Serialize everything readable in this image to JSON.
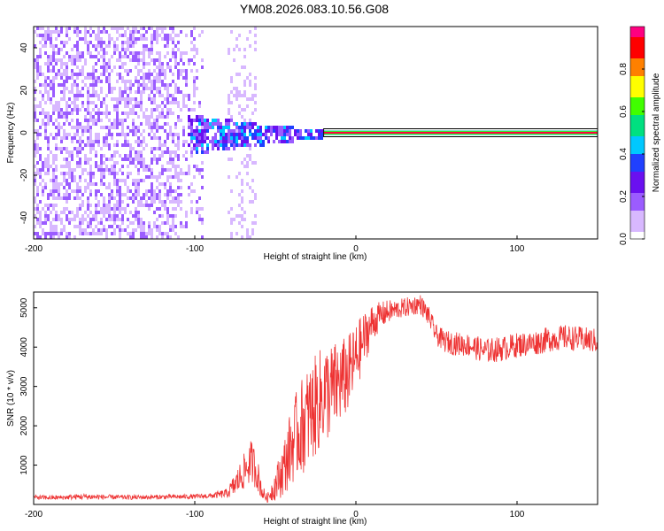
{
  "title": "YM08.2026.083.10.56.G08",
  "chart_data": [
    {
      "type": "heatmap",
      "title": "",
      "xlabel": "Height of straight line (km)",
      "ylabel": "Frequency (Hz)",
      "xlim": [
        -200,
        150
      ],
      "ylim": [
        -50,
        50
      ],
      "x_ticks": [
        -200,
        -100,
        0,
        100
      ],
      "y_ticks": [
        -40,
        -20,
        0,
        20,
        40
      ],
      "colorbar": {
        "label": "Normalized spectral amplitude",
        "range": [
          0,
          1
        ],
        "ticks": [
          0.0,
          0.2,
          0.4,
          0.6,
          0.8
        ],
        "colormap": [
          "#ffffff",
          "#d8b8ff",
          "#9b5cff",
          "#6a10f0",
          "#2040ff",
          "#00c8ff",
          "#00e080",
          "#40ff00",
          "#ffff00",
          "#ff8000",
          "#ff0000",
          "#ff0080"
        ]
      },
      "regions": [
        {
          "name": "noise",
          "x": [
            -200,
            -95
          ],
          "freq": [
            -50,
            50
          ],
          "amplitude": 0.12
        },
        {
          "name": "noise-band",
          "x": [
            -80,
            -62
          ],
          "freq": [
            -50,
            50
          ],
          "amplitude": 0.07
        },
        {
          "name": "onset",
          "x": [
            -105,
            -20
          ],
          "freq": [
            -8,
            8
          ],
          "amplitude": 0.35
        },
        {
          "name": "carrier",
          "x": [
            -20,
            150
          ],
          "freq": [
            0,
            0
          ],
          "amplitude": 0.95
        }
      ]
    },
    {
      "type": "line",
      "title": "",
      "xlabel": "Height of straight line (km)",
      "ylabel": "SNR (10 * v/v)",
      "xlim": [
        -200,
        150
      ],
      "ylim": [
        0,
        5400
      ],
      "x_ticks": [
        -200,
        -100,
        0,
        100
      ],
      "y_ticks": [
        1000,
        2000,
        3000,
        4000,
        5000
      ],
      "color": "#ee3333",
      "series": [
        {
          "x": [
            -200,
            -190,
            -180,
            -170,
            -160,
            -150,
            -140,
            -130,
            -120,
            -110,
            -100,
            -90,
            -80,
            -75,
            -70,
            -65,
            -62,
            -58,
            -55,
            -50,
            -45,
            -40,
            -35,
            -30,
            -25,
            -20,
            -15,
            -10,
            -5,
            0,
            5,
            10,
            15,
            20,
            25,
            30,
            35,
            40,
            45,
            50,
            55,
            60,
            70,
            80,
            90,
            100,
            110,
            120,
            130,
            140,
            150
          ],
          "values": [
            180,
            170,
            180,
            200,
            190,
            185,
            180,
            185,
            190,
            195,
            200,
            220,
            280,
            500,
            800,
            1100,
            900,
            300,
            150,
            500,
            900,
            1500,
            1900,
            2200,
            2500,
            2800,
            2900,
            3100,
            3300,
            3700,
            4200,
            4600,
            4800,
            4900,
            4950,
            5000,
            5050,
            5100,
            4800,
            4300,
            4150,
            4100,
            4050,
            3900,
            3950,
            4050,
            4100,
            4200,
            4250,
            4200,
            4150
          ],
          "spread": [
            60,
            60,
            60,
            80,
            70,
            60,
            60,
            60,
            60,
            60,
            60,
            70,
            120,
            300,
            450,
            550,
            500,
            200,
            100,
            400,
            700,
            1000,
            1200,
            1300,
            1300,
            1300,
            1200,
            1100,
            1000,
            900,
            700,
            500,
            350,
            300,
            250,
            250,
            250,
            250,
            250,
            260,
            280,
            300,
            300,
            320,
            320,
            320,
            320,
            320,
            320,
            320,
            320
          ]
        }
      ]
    }
  ]
}
